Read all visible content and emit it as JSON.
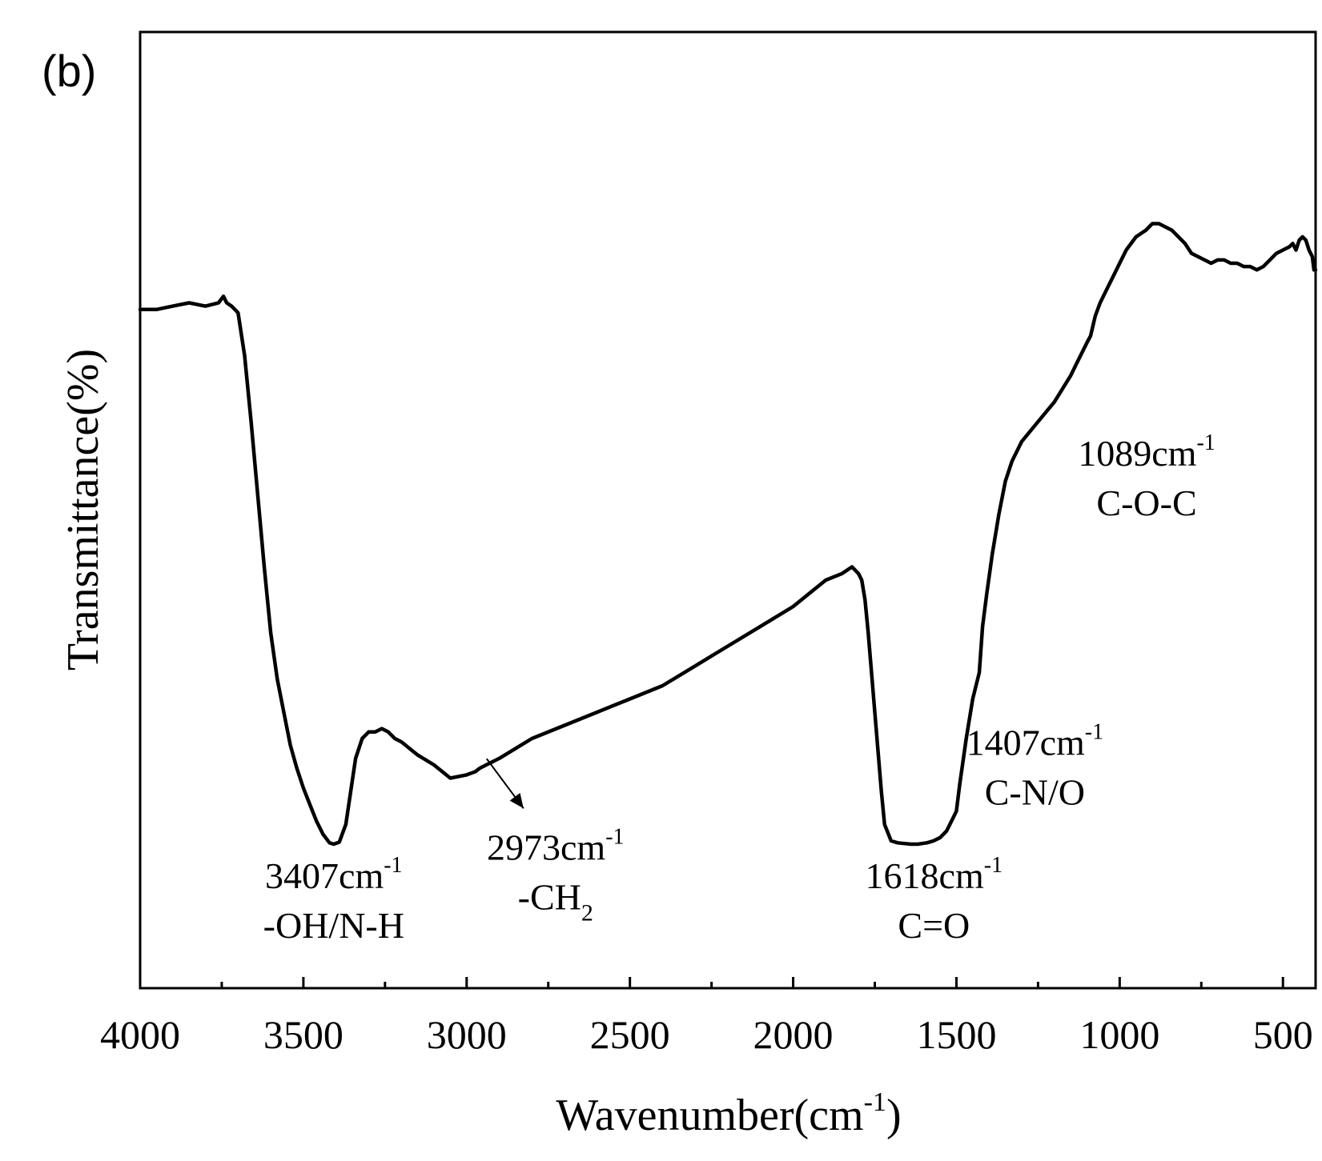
{
  "chart_data": {
    "type": "line",
    "panel_label": "(b)",
    "title": "",
    "xlabel": "Wavenumber(cm",
    "xlabel_sup": "-1",
    "xlabel_close": ")",
    "ylabel": "Transmittance(%)",
    "xlim": [
      4000,
      400
    ],
    "ylim": [
      0,
      100
    ],
    "x_ticks": [
      4000,
      3500,
      3000,
      2500,
      2000,
      1500,
      1000,
      500
    ],
    "x_tick_labels": [
      "4000",
      "3500",
      "3000",
      "2500",
      "2000",
      "1500",
      "1000",
      "500"
    ],
    "y_ticks_shown": false,
    "grid": false,
    "series": [
      {
        "name": "FTIR spectrum",
        "color": "#000000",
        "x": [
          4000,
          3950,
          3900,
          3850,
          3800,
          3760,
          3745,
          3735,
          3720,
          3700,
          3680,
          3660,
          3640,
          3620,
          3600,
          3580,
          3560,
          3540,
          3520,
          3500,
          3480,
          3460,
          3440,
          3420,
          3407,
          3390,
          3370,
          3340,
          3320,
          3300,
          3280,
          3260,
          3240,
          3220,
          3200,
          3150,
          3100,
          3050,
          3000,
          2973,
          2960,
          2940,
          2920,
          2900,
          2850,
          2800,
          2700,
          2600,
          2500,
          2400,
          2300,
          2200,
          2100,
          2000,
          1950,
          1900,
          1850,
          1820,
          1800,
          1790,
          1780,
          1770,
          1760,
          1750,
          1740,
          1730,
          1720,
          1700,
          1680,
          1660,
          1640,
          1630,
          1618,
          1605,
          1590,
          1570,
          1550,
          1530,
          1510,
          1500,
          1490,
          1470,
          1450,
          1430,
          1420,
          1407,
          1390,
          1370,
          1350,
          1330,
          1300,
          1250,
          1200,
          1150,
          1130,
          1110,
          1100,
          1089,
          1075,
          1060,
          1040,
          1020,
          1000,
          980,
          950,
          920,
          900,
          880,
          860,
          840,
          820,
          800,
          780,
          760,
          740,
          720,
          700,
          680,
          660,
          640,
          620,
          600,
          580,
          560,
          540,
          520,
          500,
          480,
          470,
          460,
          450,
          440,
          430,
          420,
          410,
          405,
          400
        ],
        "y": [
          81,
          81,
          81.5,
          82,
          81.5,
          82,
          83,
          82,
          81.5,
          80.5,
          74,
          64,
          53,
          42,
          32,
          25,
          20,
          15,
          11.5,
          8.5,
          6,
          3.5,
          1.5,
          0.2,
          0,
          0.3,
          3,
          13,
          16,
          17,
          17,
          17.5,
          17,
          16,
          15.5,
          13.5,
          12,
          10,
          10.5,
          11,
          11.5,
          12,
          12.5,
          13,
          14.5,
          16,
          18,
          20,
          22,
          24,
          27,
          30,
          33,
          36,
          38,
          40,
          41,
          42,
          41,
          40,
          37,
          32,
          26,
          20,
          14,
          8,
          3,
          0.5,
          0.2,
          0.1,
          0,
          0,
          0,
          0.1,
          0.2,
          0.5,
          1,
          2,
          4,
          5,
          9,
          16,
          22,
          26,
          33,
          38,
          44,
          50,
          55,
          58,
          61,
          64,
          67,
          71,
          73,
          75,
          76,
          77,
          80,
          82,
          84,
          86,
          88,
          90,
          92,
          93,
          94,
          94,
          93.5,
          93,
          92,
          91,
          89.5,
          89,
          88.5,
          88,
          88.5,
          88.5,
          88,
          88,
          87.5,
          87.5,
          87,
          87.5,
          88.5,
          89.5,
          90,
          90.5,
          91,
          90,
          91.5,
          92,
          91.5,
          90,
          89,
          87,
          87
        ]
      }
    ],
    "annotations": [
      {
        "id": "peak-3407",
        "x": 3407,
        "y": 0,
        "value": "3407cm",
        "sup": "-1",
        "group": "-OH/N-H",
        "sub": ""
      },
      {
        "id": "peak-2973",
        "x": 2973,
        "y": 11,
        "value": "2973cm",
        "sup": "-1",
        "group": "-CH",
        "sub": "2",
        "arrow": true
      },
      {
        "id": "peak-1618",
        "x": 1618,
        "y": 0,
        "value": "1618cm",
        "sup": "-1",
        "group": "C=O",
        "sub": ""
      },
      {
        "id": "peak-1407",
        "x": 1407,
        "y": 22,
        "value": "1407cm",
        "sup": "-1",
        "group": "C-N/O",
        "sub": ""
      },
      {
        "id": "peak-1089",
        "x": 1089,
        "y": 64,
        "value": "1089cm",
        "sup": "-1",
        "group": "C-O-C",
        "sub": ""
      }
    ]
  }
}
